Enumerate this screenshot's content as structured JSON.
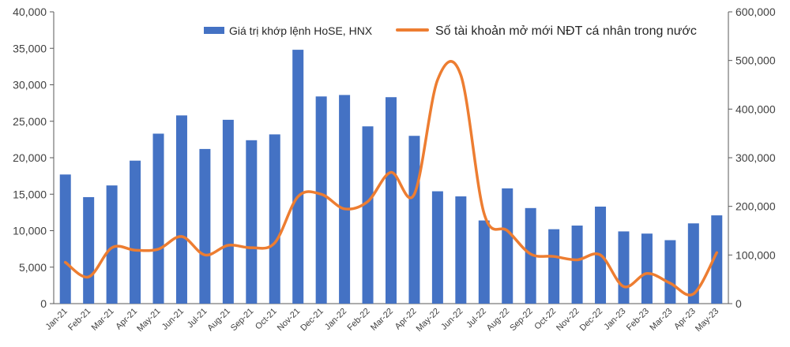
{
  "chart_data": {
    "type": "bar",
    "categories": [
      "Jan-21",
      "Feb-21",
      "Mar-21",
      "Apr-21",
      "May-21",
      "Jun-21",
      "Jul-21",
      "Aug-21",
      "Sep-21",
      "Oct-21",
      "Nov-21",
      "Dec-21",
      "Jan-22",
      "Feb-22",
      "Mar-22",
      "Apr-22",
      "May-22",
      "Jun-22",
      "Jul-22",
      "Aug-22",
      "Sep-22",
      "Oct-22",
      "Nov-22",
      "Dec-22",
      "Jan-23",
      "Feb-23",
      "Mar-23",
      "Apr-23",
      "May-23"
    ],
    "series": [
      {
        "name": "Giá trị khớp lệnh HoSE, HNX",
        "type": "bar",
        "axis": "left",
        "color": "#4472C4",
        "values": [
          17700,
          14600,
          16200,
          19600,
          23300,
          25800,
          21200,
          25200,
          22400,
          23200,
          34800,
          28400,
          28600,
          24300,
          28300,
          23000,
          15400,
          14700,
          11400,
          15800,
          13100,
          10200,
          10700,
          13300,
          9900,
          9600,
          8700,
          11000,
          12100
        ]
      },
      {
        "name": "Số tài khoản mở mới NĐT cá nhân trong nước",
        "type": "line",
        "axis": "right",
        "color": "#ED7D31",
        "values": [
          85000,
          55000,
          115000,
          110000,
          112000,
          138000,
          100000,
          120000,
          115000,
          125000,
          220000,
          225000,
          195000,
          210000,
          270000,
          225000,
          460000,
          470000,
          185000,
          150000,
          102000,
          97000,
          90000,
          100000,
          35000,
          62000,
          42000,
          20000,
          105000
        ]
      }
    ],
    "title": "",
    "xlabel": "",
    "ylabel": "",
    "ylim": [
      0,
      40000
    ],
    "y2lim": [
      0,
      600000
    ],
    "yticks": [
      "0",
      "5,000",
      "10,000",
      "15,000",
      "20,000",
      "25,000",
      "30,000",
      "35,000",
      "40,000"
    ],
    "y2ticks": [
      "0",
      "100,000",
      "200,000",
      "300,000",
      "400,000",
      "500,000",
      "600,000"
    ],
    "legend": "top-center",
    "grid": false
  }
}
